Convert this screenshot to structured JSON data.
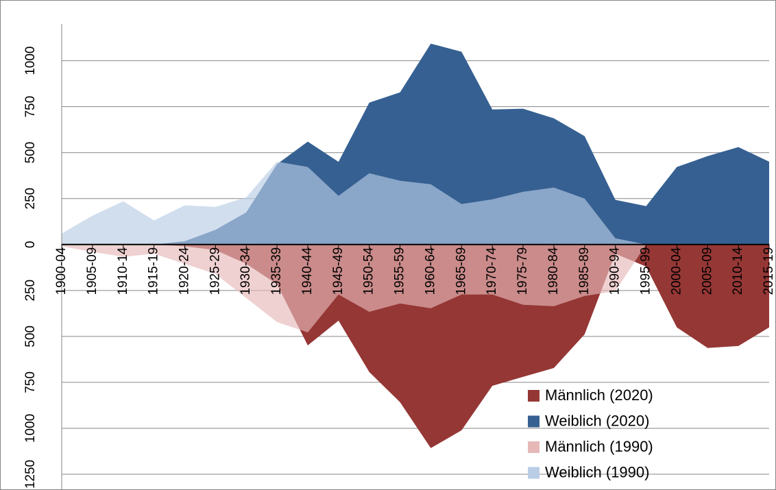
{
  "chart_data": {
    "type": "area",
    "categories": [
      "1900-04",
      "1905-09",
      "1910-14",
      "1915-19",
      "1920-24",
      "1925-29",
      "1930-34",
      "1935-39",
      "1940-44",
      "1945-49",
      "1950-54",
      "1955-59",
      "1960-64",
      "1965-69",
      "1970-74",
      "1975-79",
      "1980-84",
      "1985-89",
      "1990-94",
      "1995-99",
      "2000-04",
      "2005-09",
      "2010-14",
      "2015-19"
    ],
    "series": [
      {
        "name": "Männlich (2020)",
        "color": "#953735",
        "values": [
          0,
          0,
          0,
          0,
          -10,
          -30,
          -105,
          -216,
          -549,
          -414,
          -694,
          -858,
          -1108,
          -1011,
          -769,
          -720,
          -672,
          -489,
          -50,
          -120,
          -451,
          -563,
          -552,
          -451
        ]
      },
      {
        "name": "Weiblich (2020)",
        "color": "#366092",
        "values": [
          0,
          0,
          0,
          0,
          18,
          80,
          175,
          437,
          560,
          450,
          772,
          828,
          1093,
          1049,
          735,
          739,
          687,
          590,
          243,
          209,
          422,
          481,
          530,
          451
        ]
      },
      {
        "name": "Männlich (1990)",
        "color": "#e6b9b8",
        "values": [
          -10,
          -40,
          -67,
          -50,
          -105,
          -160,
          -291,
          -422,
          -478,
          -272,
          -366,
          -321,
          -347,
          -272,
          -272,
          -328,
          -336,
          -280,
          -254,
          0,
          0,
          0,
          0,
          0
        ]
      },
      {
        "name": "Weiblich (1990)",
        "color": "#b9cde5",
        "values": [
          60,
          157,
          235,
          131,
          213,
          205,
          257,
          451,
          422,
          265,
          388,
          347,
          328,
          220,
          246,
          287,
          310,
          250,
          34,
          0,
          0,
          0,
          0,
          0
        ]
      }
    ],
    "ylim": [
      -1250,
      1200
    ],
    "yticks": [
      {
        "value": -1250,
        "label": "1250"
      },
      {
        "value": -1000,
        "label": "1000"
      },
      {
        "value": -750,
        "label": "750"
      },
      {
        "value": -500,
        "label": "500"
      },
      {
        "value": -250,
        "label": "250"
      },
      0,
      250,
      500,
      750,
      1000
    ],
    "grid": true,
    "legend": "bottom-right"
  }
}
